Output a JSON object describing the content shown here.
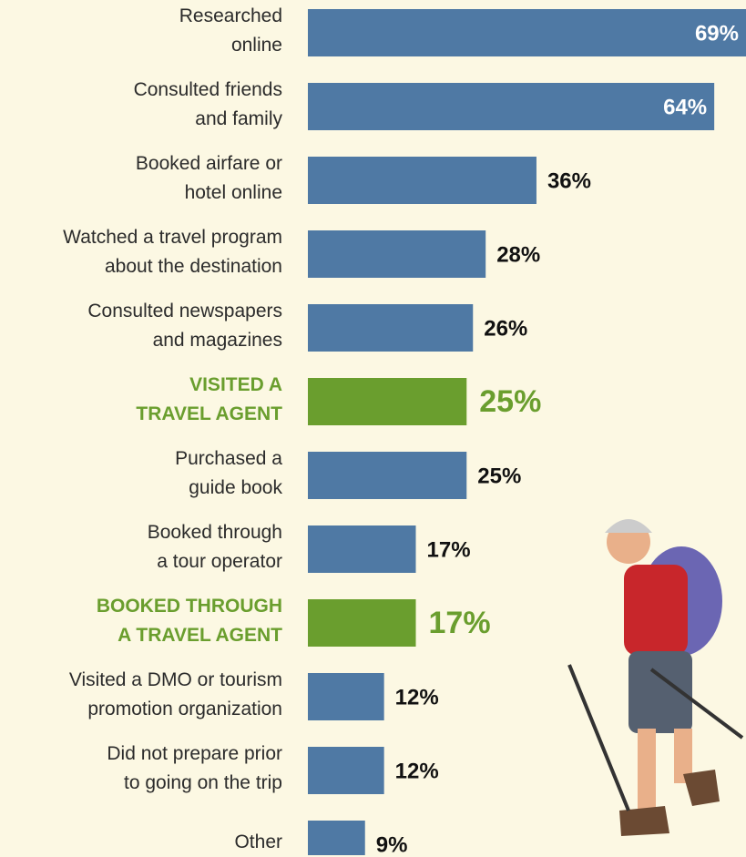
{
  "chart_data": {
    "type": "bar",
    "orientation": "horizontal",
    "categories": [
      "Researched\nonline",
      "Consulted friends\nand family",
      "Booked airfare or\nhotel online",
      "Watched a travel program\nabout the destination",
      "Consulted newspapers\nand magazines",
      "VISITED A\nTRAVEL AGENT",
      "Purchased a\nguide book",
      "Booked through\na tour operator",
      "BOOKED THROUGH\nA TRAVEL AGENT",
      "Visited a DMO or tourism\npromotion organization",
      "Did not prepare prior\nto going on the trip",
      "Other"
    ],
    "values": [
      69,
      64,
      36,
      28,
      26,
      25,
      25,
      17,
      17,
      12,
      12,
      9
    ],
    "value_labels": [
      "69%",
      "64%",
      "36%",
      "28%",
      "26%",
      "25%",
      "25%",
      "17%",
      "17%",
      "12%",
      "12%",
      "9%"
    ],
    "color": "#4f79a4",
    "colors": [
      "#4f79a4",
      "#4f79a4",
      "#4f79a4",
      "#4f79a4",
      "#4f79a4",
      "#6a9e2e",
      "#4f79a4",
      "#4f79a4",
      "#6a9e2e",
      "#4f79a4",
      "#4f79a4",
      "#4f79a4"
    ],
    "xlim": [
      0,
      69
    ]
  }
}
